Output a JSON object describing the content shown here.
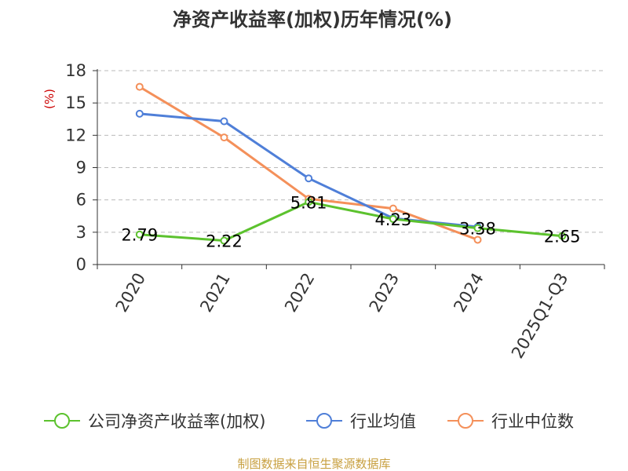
{
  "chart_data": {
    "type": "line",
    "title": "净资产收益率(加权)历年情况(%)",
    "ylabel": "(%)",
    "categories": [
      "2020",
      "2021",
      "2022",
      "2023",
      "2024",
      "2025Q1-Q3"
    ],
    "ylim": [
      0,
      18
    ],
    "yticks": [
      0,
      3,
      6,
      9,
      12,
      15,
      18
    ],
    "grid": true,
    "legend_position": "bottom",
    "series": [
      {
        "name": "公司净资产收益率(加权)",
        "color": "#5cc22e",
        "values": [
          2.79,
          2.22,
          5.81,
          4.23,
          3.38,
          2.65
        ],
        "labels": [
          "2.79",
          "2.22",
          "5.81",
          "4.23",
          "3.38",
          "2.65"
        ]
      },
      {
        "name": "行业均值",
        "color": "#4f7fd8",
        "values": [
          14.0,
          13.3,
          8.0,
          4.3,
          3.5,
          null
        ]
      },
      {
        "name": "行业中位数",
        "color": "#f4905a",
        "values": [
          16.5,
          11.8,
          6.1,
          5.2,
          2.3,
          null
        ]
      }
    ],
    "source": "制图数据来自恒生聚源数据库"
  }
}
